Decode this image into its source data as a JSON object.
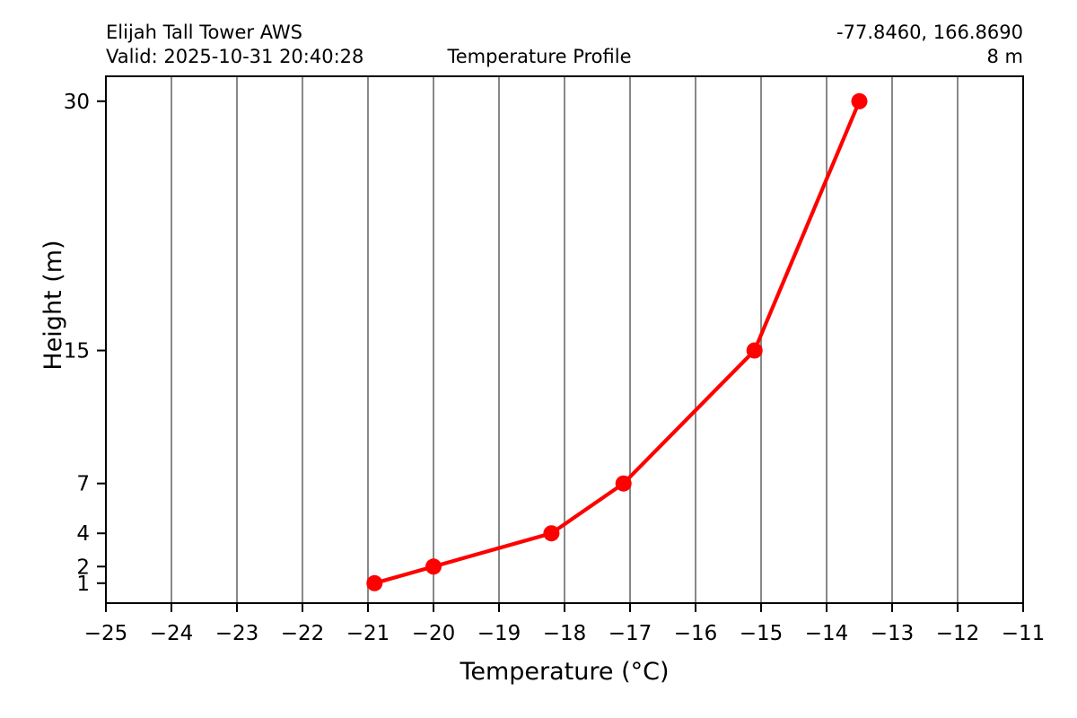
{
  "header": {
    "station_name": "Elijah Tall Tower AWS",
    "valid_time": "Valid: 2025-10-31 20:40:28",
    "coordinates": "-77.8460, 166.8690",
    "elevation": "8 m"
  },
  "chart_data": {
    "type": "line",
    "title": "Temperature Profile",
    "xlabel": "Temperature (°C)",
    "ylabel": "Height (m)",
    "series": [
      {
        "name": "temperature-profile",
        "x": [
          -20.9,
          -20.0,
          -18.2,
          -17.1,
          -15.1,
          -13.5
        ],
        "y": [
          1,
          2,
          4,
          7,
          15,
          30
        ],
        "color": "#ff0000",
        "marker": "circle"
      }
    ],
    "xlim": [
      -25,
      -11
    ],
    "ylim": [
      -0.2,
      31.5
    ],
    "xticks": [
      -25,
      -24,
      -23,
      -22,
      -21,
      -20,
      -19,
      -18,
      -17,
      -16,
      -15,
      -14,
      -13,
      -12,
      -11
    ],
    "xtick_labels": [
      "−25",
      "−24",
      "−23",
      "−22",
      "−21",
      "−20",
      "−19",
      "−18",
      "−17",
      "−16",
      "−15",
      "−14",
      "−13",
      "−12",
      "−11"
    ],
    "yticks": [
      1,
      2,
      4,
      7,
      15,
      30
    ],
    "ytick_labels": [
      "1",
      "2",
      "4",
      "7",
      "15",
      "30"
    ],
    "grid": "vertical-only",
    "grid_color": "#888888",
    "axis_color": "#000000",
    "background_color": "#ffffff",
    "legend": "none"
  }
}
